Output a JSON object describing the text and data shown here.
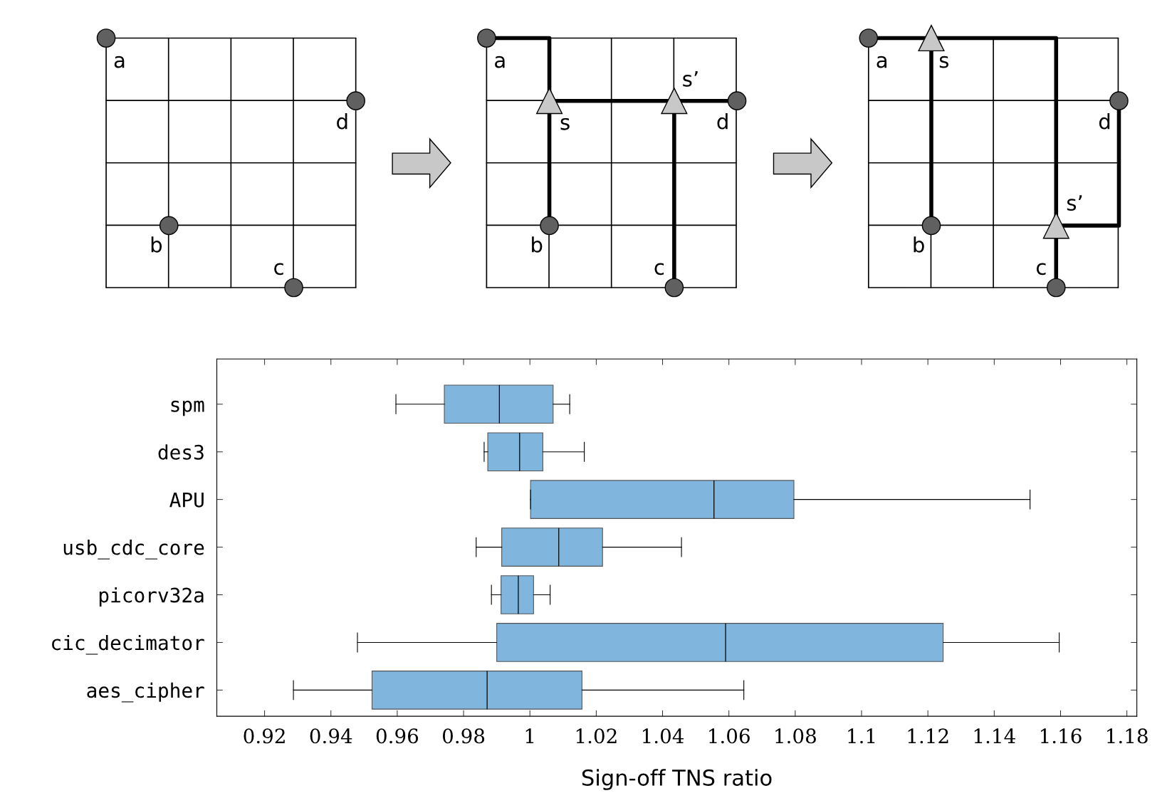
{
  "chart_data": [
    {
      "type": "other",
      "annotations": [
        "a",
        "d",
        "b",
        "c",
        "a",
        "s’",
        "s",
        "d",
        "b",
        "c",
        "a",
        "s",
        "d",
        "s’",
        "b",
        "c"
      ]
    },
    {
      "type": "box",
      "orientation": "horizontal",
      "xlabel": "Sign-off TNS ratio",
      "color": "#80b6de",
      "grid": false,
      "categories": [
        "spm",
        "des3",
        "APU",
        "usb_cdc_core",
        "picorv32a",
        "cic_decimator",
        "aes_cipher"
      ],
      "boxes": [
        {
          "low": 0.9596,
          "q1": 0.9742,
          "median": 0.9908,
          "q3": 1.007,
          "high": 1.012
        },
        {
          "low": 0.9862,
          "q1": 0.9873,
          "median": 0.9969,
          "q3": 1.0039,
          "high": 1.0164
        },
        {
          "low": 1.0002,
          "q1": 1.0002,
          "median": 1.0555,
          "q3": 1.0796,
          "high": 1.1508
        },
        {
          "low": 0.9838,
          "q1": 0.9915,
          "median": 1.0087,
          "q3": 1.0219,
          "high": 1.0457
        },
        {
          "low": 0.9884,
          "q1": 0.9913,
          "median": 0.9965,
          "q3": 1.0011,
          "high": 1.0061
        },
        {
          "low": 0.948,
          "q1": 0.99,
          "median": 1.059,
          "q3": 1.1246,
          "high": 1.1596
        },
        {
          "low": 0.9287,
          "q1": 0.9524,
          "median": 0.9871,
          "q3": 1.0157,
          "high": 1.0645
        }
      ],
      "xlim": [
        0.9056,
        1.183
      ],
      "xticks": [
        0.92,
        0.94,
        0.96,
        0.98,
        1,
        1.02,
        1.04,
        1.06,
        1.08,
        1.1,
        1.12,
        1.14,
        1.16,
        1.18
      ]
    }
  ]
}
